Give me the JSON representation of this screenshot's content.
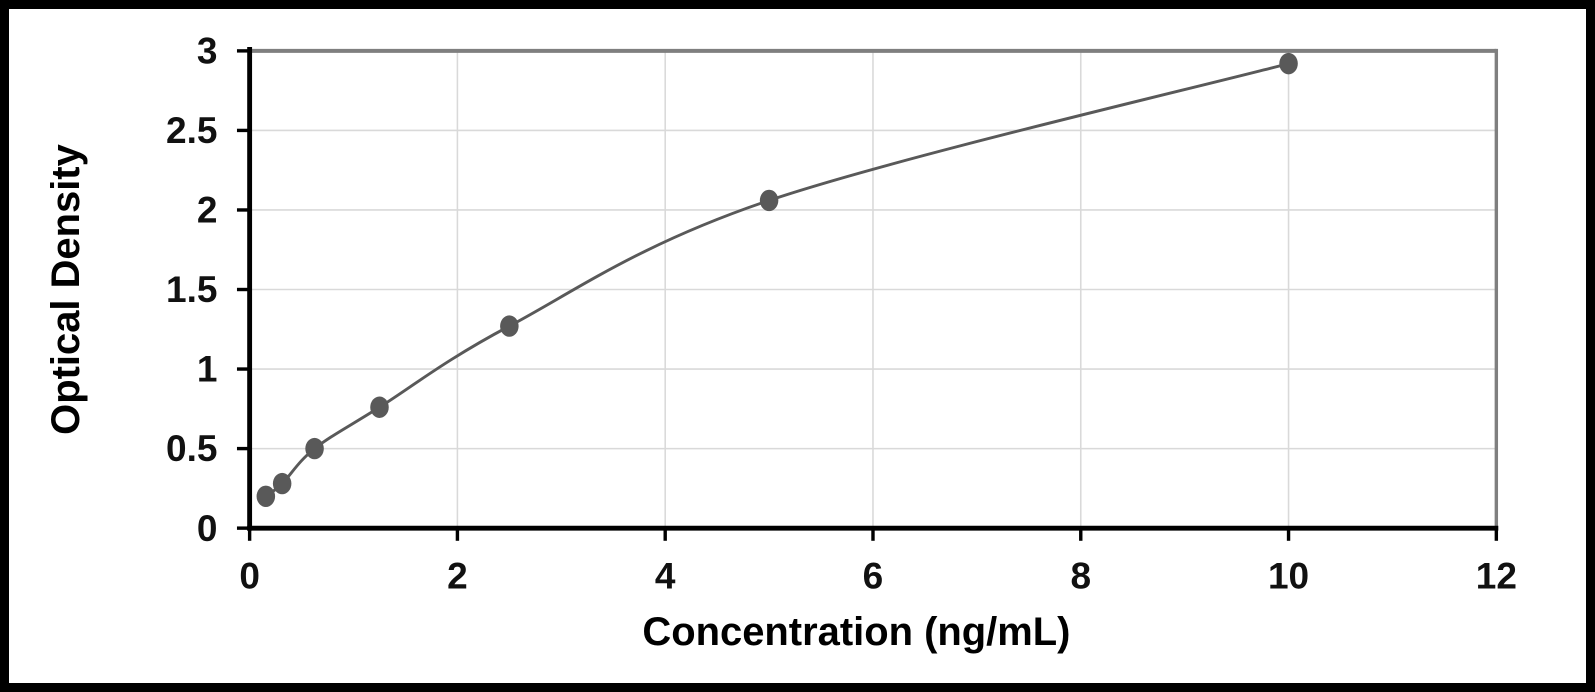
{
  "chart_data": {
    "type": "scatter",
    "title": "",
    "xlabel": "Concentration (ng/mL)",
    "ylabel": "Optical Density",
    "x": [
      0.156,
      0.313,
      0.625,
      1.25,
      2.5,
      5,
      10
    ],
    "y": [
      0.2,
      0.28,
      0.5,
      0.76,
      1.27,
      2.06,
      2.92
    ],
    "xlim": [
      0,
      12
    ],
    "ylim": [
      0,
      3
    ],
    "x_ticks": [
      0,
      2,
      4,
      6,
      8,
      10,
      12
    ],
    "y_ticks": [
      0,
      0.5,
      1,
      1.5,
      2,
      2.5,
      3
    ],
    "grid": true,
    "legend": false,
    "line_through_points": true,
    "colors": {
      "series": "#595959",
      "gridline": "#d9d9d9",
      "axis": "#000000",
      "plot_border": "#7f7f7f",
      "outer_frame": "#000000",
      "background": "#ffffff"
    }
  }
}
